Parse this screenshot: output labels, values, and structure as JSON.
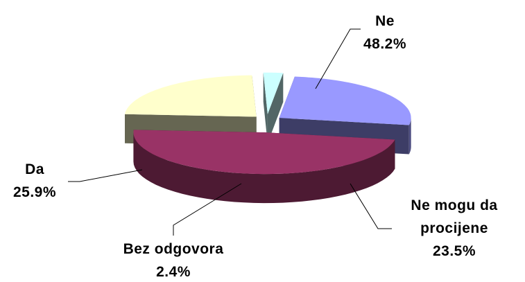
{
  "chart_data": {
    "type": "pie3d",
    "categories": [
      "Ne",
      "Ne mogu da procijene",
      "Bez odgovora",
      "Da"
    ],
    "values": [
      48.2,
      23.5,
      2.4,
      25.9
    ],
    "value_labels": [
      "48.2%",
      "23.5%",
      "2.4%",
      "25.9%"
    ],
    "colors": [
      "#993366",
      "#ffffcc",
      "#ccffff",
      "#9999ff"
    ]
  }
}
